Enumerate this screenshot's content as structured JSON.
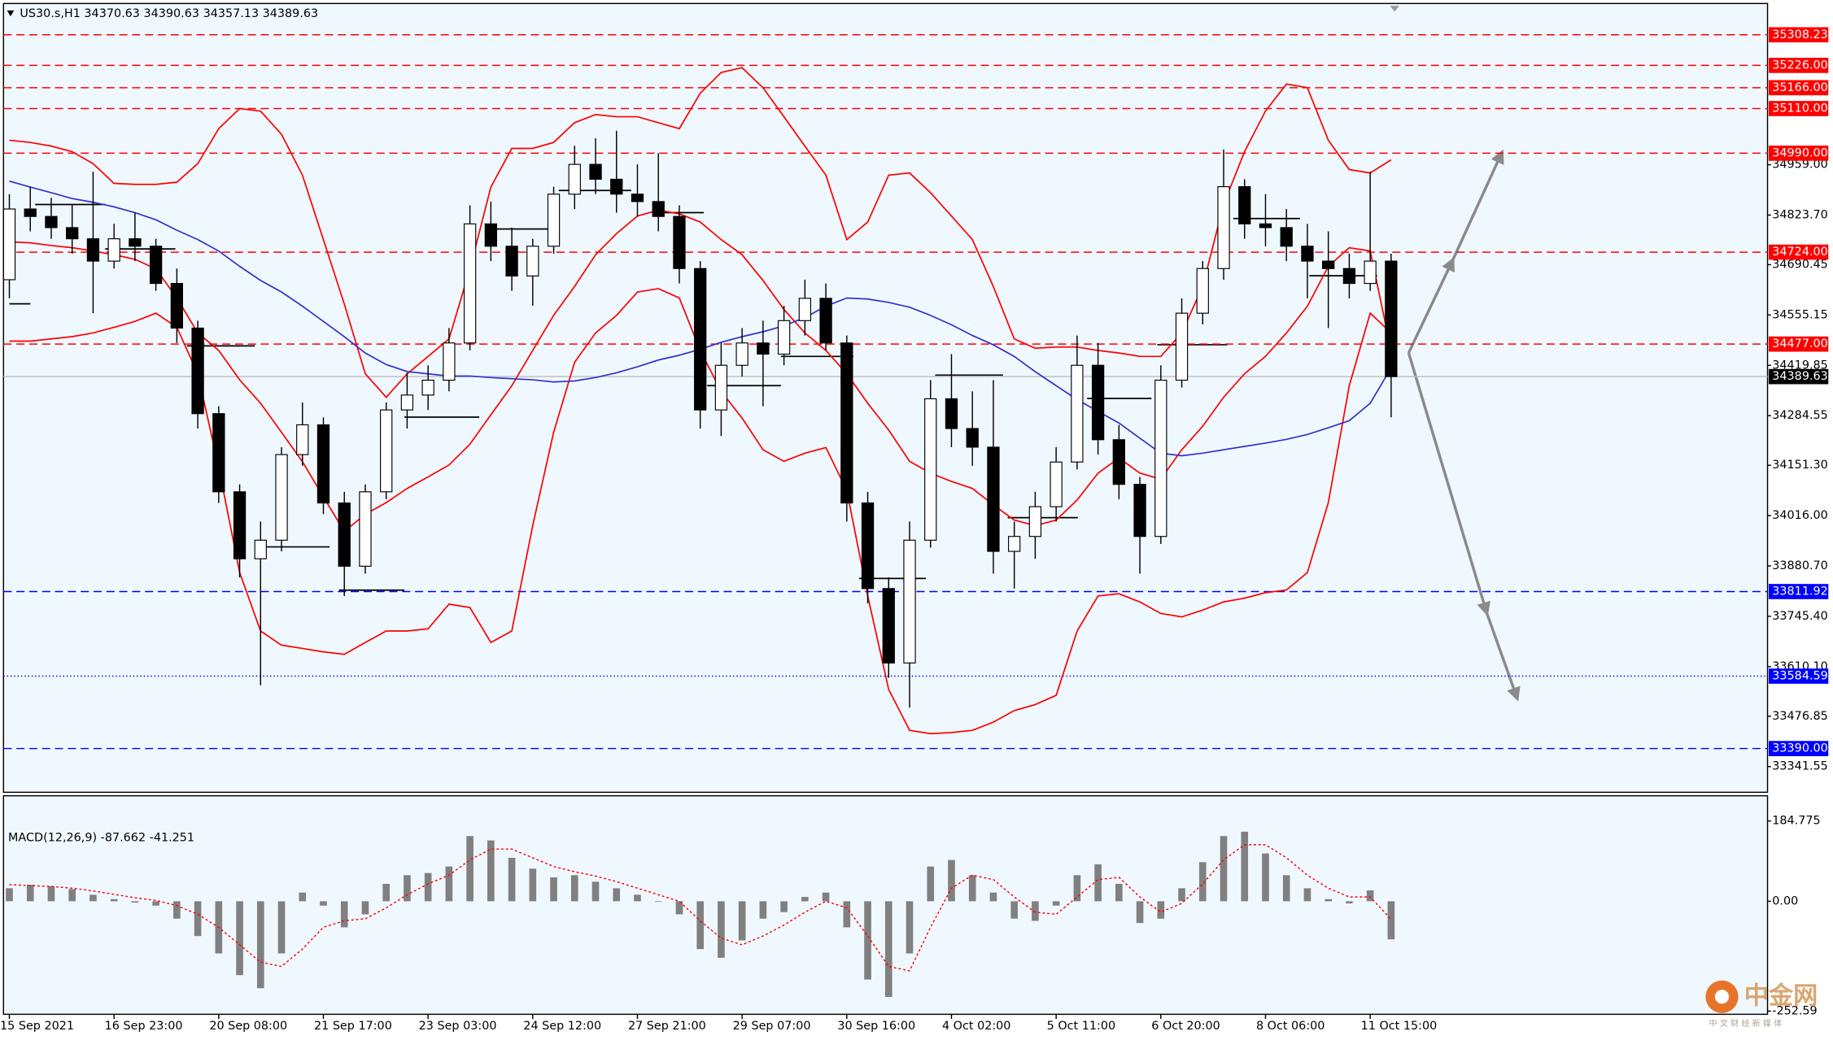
{
  "chart_data": [
    {
      "type": "candlestick",
      "title": "US30.s,H1  34370.63 34390.63 34357.13 34389.63",
      "categories": [
        "15 Sep 2021",
        null,
        null,
        null,
        null,
        "16 Sep 23:00",
        null,
        null,
        null,
        null,
        "20 Sep 08:00",
        null,
        null,
        null,
        null,
        "21 Sep 17:00",
        null,
        null,
        null,
        null,
        "23 Sep 03:00",
        null,
        null,
        null,
        null,
        "24 Sep 12:00",
        null,
        null,
        null,
        null,
        "27 Sep 21:00",
        null,
        null,
        null,
        null,
        "29 Sep 07:00",
        null,
        null,
        null,
        null,
        "30 Sep 16:00",
        null,
        null,
        null,
        null,
        "4 Oct 02:00",
        null,
        null,
        null,
        null,
        "5 Oct 11:00",
        null,
        null,
        null,
        null,
        "6 Oct 20:00",
        null,
        null,
        null,
        null,
        "8 Oct 06:00",
        null,
        null,
        null,
        null,
        "11 Oct 15:00",
        null
      ],
      "open": [
        34650,
        34840,
        34820,
        34790,
        34760,
        34700,
        34760,
        34740,
        34640,
        34520,
        34290,
        34080,
        33900,
        33950,
        34180,
        34260,
        34050,
        33880,
        34080,
        34300,
        34340,
        34380,
        34480,
        34800,
        34740,
        34660,
        34740,
        34880,
        34960,
        34920,
        34880,
        34860,
        34820,
        34680,
        34300,
        34420,
        34480,
        34450,
        34540,
        34600,
        34480,
        34050,
        33820,
        33620,
        33950,
        34330,
        34250,
        34200,
        33920,
        33960,
        34040,
        34160,
        34420,
        34220,
        34100,
        33960,
        34380,
        34560,
        34680,
        34900,
        34800,
        34790,
        34740,
        34700,
        34680,
        34640,
        34700
      ],
      "high": [
        34880,
        34900,
        34870,
        34850,
        34940,
        34800,
        34830,
        34760,
        34680,
        34540,
        34310,
        34100,
        34000,
        34200,
        34320,
        34280,
        34080,
        34100,
        34320,
        34400,
        34420,
        34520,
        34850,
        34860,
        34790,
        34760,
        34900,
        35010,
        35030,
        35050,
        34960,
        34990,
        34850,
        34700,
        34480,
        34520,
        34540,
        34580,
        34650,
        34640,
        34500,
        34080,
        33850,
        34000,
        34380,
        34450,
        34350,
        34380,
        34000,
        34080,
        34200,
        34500,
        34480,
        34260,
        34120,
        34420,
        34600,
        34700,
        35000,
        34920,
        34880,
        34840,
        34800,
        34780,
        34720,
        34940,
        34720
      ],
      "low": [
        34600,
        34780,
        34760,
        34720,
        34560,
        34680,
        34700,
        34620,
        34480,
        34250,
        34050,
        33850,
        33560,
        33920,
        34150,
        34020,
        33800,
        33860,
        34060,
        34250,
        34300,
        34350,
        34460,
        34700,
        34620,
        34580,
        34720,
        34840,
        34880,
        34830,
        34820,
        34780,
        34640,
        34250,
        34230,
        34390,
        34310,
        34420,
        34500,
        34460,
        34000,
        33780,
        33580,
        33500,
        33930,
        34200,
        34150,
        33860,
        33820,
        33900,
        34000,
        34140,
        34180,
        34060,
        33860,
        33940,
        34360,
        34530,
        34650,
        34760,
        34740,
        34700,
        34600,
        34520,
        34600,
        34620,
        34280
      ],
      "close": [
        34840,
        34820,
        34790,
        34760,
        34700,
        34760,
        34740,
        34640,
        34520,
        34290,
        34080,
        33900,
        33950,
        34180,
        34260,
        34050,
        33880,
        34080,
        34300,
        34340,
        34380,
        34480,
        34800,
        34740,
        34660,
        34740,
        34880,
        34960,
        34920,
        34880,
        34860,
        34820,
        34680,
        34300,
        34420,
        34480,
        34450,
        34540,
        34600,
        34480,
        34050,
        33820,
        33620,
        33950,
        34330,
        34250,
        34200,
        33920,
        33960,
        34040,
        34160,
        34420,
        34220,
        34100,
        33960,
        34380,
        34560,
        34680,
        34900,
        34800,
        34790,
        34740,
        34700,
        34680,
        34640,
        34700,
        34389.63
      ],
      "up_fill": "#ffffff",
      "down_fill": "#000000",
      "wick_color": "#000000",
      "series": [
        {
          "color": "#ff0000",
          "values": [
            35025,
            35019,
            35009,
            34994,
            34962,
            34909,
            34906,
            34906,
            34912,
            34962,
            35056,
            35110,
            35103,
            35041,
            34931,
            34758,
            34585,
            34397,
            34334,
            34397,
            34444,
            34491,
            34679,
            34899,
            35003,
            35003,
            35019,
            35072,
            35094,
            35088,
            35088,
            35072,
            35056,
            35151,
            35207,
            35220,
            35166,
            35088,
            35009,
            34931,
            34758,
            34805,
            34931,
            34937,
            34884,
            34821,
            34758,
            34632,
            34491,
            34466,
            34469,
            34469,
            34460,
            34453,
            34444,
            34444,
            34507,
            34632,
            34852,
            34994,
            35103,
            35176,
            35166,
            35025,
            34946,
            34937,
            34972
          ]
        },
        {
          "color": "#ff0000",
          "values": [
            34752,
            34749,
            34742,
            34736,
            34727,
            34717,
            34705,
            34679,
            34601,
            34507,
            34460,
            34381,
            34318,
            34240,
            34161,
            34067,
            33973,
            34020,
            34051,
            34089,
            34120,
            34152,
            34208,
            34287,
            34365,
            34460,
            34554,
            34632,
            34717,
            34774,
            34821,
            34837,
            34827,
            34805,
            34758,
            34717,
            34648,
            34570,
            34507,
            34460,
            34397,
            34318,
            34246,
            34162,
            34130,
            34108,
            34089,
            34045,
            34004,
            33989,
            34004,
            34058,
            34130,
            34171,
            34130,
            34114,
            34193,
            34256,
            34334,
            34397,
            34444,
            34507,
            34579,
            34686,
            34736,
            34727,
            34460
          ]
        },
        {
          "color": "#ff0000",
          "values": [
            34485,
            34485,
            34491,
            34497,
            34507,
            34522,
            34538,
            34560,
            34522,
            34397,
            34146,
            33863,
            33706,
            33668,
            33659,
            33650,
            33643,
            33675,
            33706,
            33706,
            33712,
            33778,
            33769,
            33675,
            33706,
            33989,
            34240,
            34428,
            34507,
            34554,
            34617,
            34626,
            34601,
            34460,
            34350,
            34278,
            34193,
            34162,
            34184,
            34199,
            34083,
            33800,
            33549,
            33439,
            33430,
            33433,
            33439,
            33461,
            33492,
            33508,
            33533,
            33706,
            33800,
            33806,
            33784,
            33753,
            33744,
            33762,
            33784,
            33794,
            33809,
            33816,
            33863,
            34051,
            34365,
            34560,
            34507
          ]
        },
        {
          "color": "#3333cc",
          "values": [
            34915,
            34899,
            34884,
            34868,
            34858,
            34846,
            34830,
            34811,
            34783,
            34758,
            34727,
            34686,
            34648,
            34617,
            34579,
            34538,
            34497,
            34453,
            34422,
            34403,
            34397,
            34391,
            34391,
            34387,
            34384,
            34381,
            34375,
            34378,
            34387,
            34400,
            34416,
            34434,
            34447,
            34463,
            34482,
            34497,
            34510,
            34526,
            34548,
            34579,
            34601,
            34598,
            34589,
            34576,
            34554,
            34529,
            34500,
            34475,
            34444,
            34403,
            34365,
            34328,
            34296,
            34265,
            34224,
            34184,
            34177,
            34184,
            34193,
            34202,
            34211,
            34221,
            34234,
            34252,
            34271,
            34318,
            34413
          ]
        }
      ],
      "levels": [
        {
          "value": 35308.23,
          "color": "#ff0000",
          "dash": "dashed"
        },
        {
          "value": 35226,
          "label": "35226.00",
          "color": "#ff0000",
          "dash": "dashed"
        },
        {
          "value": 35166,
          "label": "35166.00",
          "color": "#ff0000",
          "dash": "dashed"
        },
        {
          "value": 35110,
          "label": "35110.00",
          "color": "#ff0000",
          "dash": "dashed"
        },
        {
          "value": 34990,
          "label": "34990.00",
          "color": "#ff0000",
          "dash": "dashed"
        },
        {
          "value": 34724,
          "label": "34724.00",
          "color": "#ff0000",
          "dash": "dashed"
        },
        {
          "value": 34477,
          "label": "34477.00",
          "color": "#ff0000",
          "dash": "dashed"
        },
        {
          "value": 33811.92,
          "color": "#0000ff",
          "dash": "dashed"
        },
        {
          "value": 33584.59,
          "color": "#0000ff",
          "dash": "dotted"
        },
        {
          "value": 33390,
          "label": "33390.00",
          "color": "#0000ff",
          "dash": "dashed"
        }
      ],
      "last": 34389.63,
      "ylim": [
        33272.5,
        35386
      ],
      "yticks": [
        {
          "value": 34959,
          "label": "34959.00"
        },
        {
          "value": 34823.7,
          "label": "34823.70"
        },
        34690.45,
        34555.15,
        34419.85,
        34284.55,
        {
          "value": 34151.3,
          "label": "34151.30"
        },
        {
          "value": 34016,
          "label": "34016.00"
        },
        {
          "value": 33880.7,
          "label": "33880.70"
        },
        {
          "value": 33745.4,
          "label": "33745.40"
        },
        {
          "value": 33610.1,
          "label": "33610.10"
        },
        33476.85,
        33341.55
      ]
    },
    {
      "type": "macd",
      "title": "MACD(12,26,9) -87.662 -41.251",
      "values": [
        30,
        38,
        35,
        28,
        15,
        5,
        -3,
        -10,
        -40,
        -80,
        -120,
        -170,
        -200,
        -120,
        20,
        -10,
        -60,
        -30,
        40,
        60,
        65,
        80,
        150,
        140,
        100,
        75,
        55,
        60,
        45,
        30,
        15,
        0,
        -30,
        -110,
        -130,
        -90,
        -40,
        -25,
        10,
        20,
        -60,
        -180,
        -220,
        -120,
        80,
        95,
        60,
        20,
        -40,
        -45,
        -10,
        60,
        85,
        40,
        -50,
        -40,
        30,
        90,
        150,
        160,
        110,
        60,
        30,
        5,
        -5,
        25,
        -87.662
      ],
      "color": "#808080",
      "series": [
        {
          "color": "#ff0000",
          "dash": "dotted",
          "values": [
            38,
            36,
            34,
            30,
            24,
            16,
            8,
            2,
            -10,
            -30,
            -60,
            -100,
            -140,
            -150,
            -110,
            -60,
            -45,
            -40,
            -15,
            15,
            40,
            60,
            95,
            120,
            120,
            100,
            80,
            68,
            58,
            45,
            30,
            15,
            0,
            -45,
            -85,
            -100,
            -80,
            -55,
            -25,
            0,
            -15,
            -80,
            -150,
            -160,
            -60,
            30,
            60,
            50,
            10,
            -25,
            -30,
            10,
            50,
            55,
            10,
            -25,
            -5,
            40,
            95,
            130,
            130,
            100,
            60,
            30,
            10,
            10,
            -41.251
          ]
        }
      ],
      "ylim": [
        -260,
        240
      ],
      "yticks": [
        184.775,
        {
          "value": 0,
          "label": "0.00"
        },
        -252.59
      ]
    }
  ],
  "watermark": {
    "title": "中金网",
    "subtitle": "中 文 财 经 新 媒 体"
  }
}
